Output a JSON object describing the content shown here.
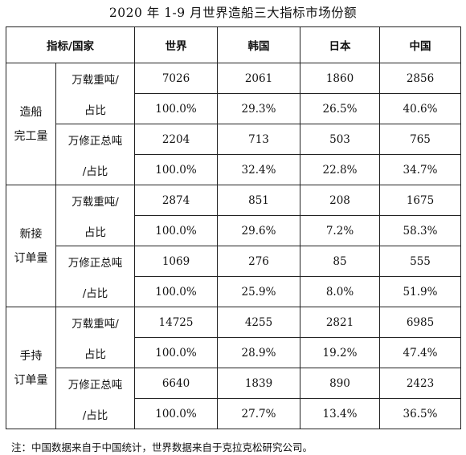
{
  "title": "2020 年 1-9 月世界造船三大指标市场份额",
  "header": {
    "indicator": "指标/国家",
    "countries": [
      "世界",
      "韩国",
      "日本",
      "中国"
    ]
  },
  "sections": [
    {
      "name_line1": "造船",
      "name_line2": "完工量",
      "groups": [
        {
          "unit_line1": "万载重吨/",
          "unit_line2": "占比",
          "values": [
            "7026",
            "2061",
            "1860",
            "2856"
          ],
          "shares": [
            "100.0%",
            "29.3%",
            "26.5%",
            "40.6%"
          ]
        },
        {
          "unit_line1": "万修正总吨",
          "unit_line2": "/占比",
          "values": [
            "2204",
            "713",
            "503",
            "765"
          ],
          "shares": [
            "100.0%",
            "32.4%",
            "22.8%",
            "34.7%"
          ]
        }
      ]
    },
    {
      "name_line1": "新接",
      "name_line2": "订单量",
      "groups": [
        {
          "unit_line1": "万载重吨/",
          "unit_line2": "占比",
          "values": [
            "2874",
            "851",
            "208",
            "1675"
          ],
          "shares": [
            "100.0%",
            "29.6%",
            "7.2%",
            "58.3%"
          ]
        },
        {
          "unit_line1": "万修正总吨",
          "unit_line2": "/占比",
          "values": [
            "1069",
            "276",
            "85",
            "555"
          ],
          "shares": [
            "100.0%",
            "25.9%",
            "8.0%",
            "51.9%"
          ]
        }
      ]
    },
    {
      "name_line1": "手持",
      "name_line2": "订单量",
      "groups": [
        {
          "unit_line1": "万载重吨/",
          "unit_line2": "占比",
          "values": [
            "14725",
            "4255",
            "2821",
            "6985"
          ],
          "shares": [
            "100.0%",
            "28.9%",
            "19.2%",
            "47.4%"
          ]
        },
        {
          "unit_line1": "万修正总吨",
          "unit_line2": "/占比",
          "values": [
            "6640",
            "1839",
            "890",
            "2423"
          ],
          "shares": [
            "100.0%",
            "27.7%",
            "13.4%",
            "36.5%"
          ]
        }
      ]
    }
  ],
  "note": "注：中国数据来自于中国统计，世界数据来自于克拉克松研究公司。"
}
